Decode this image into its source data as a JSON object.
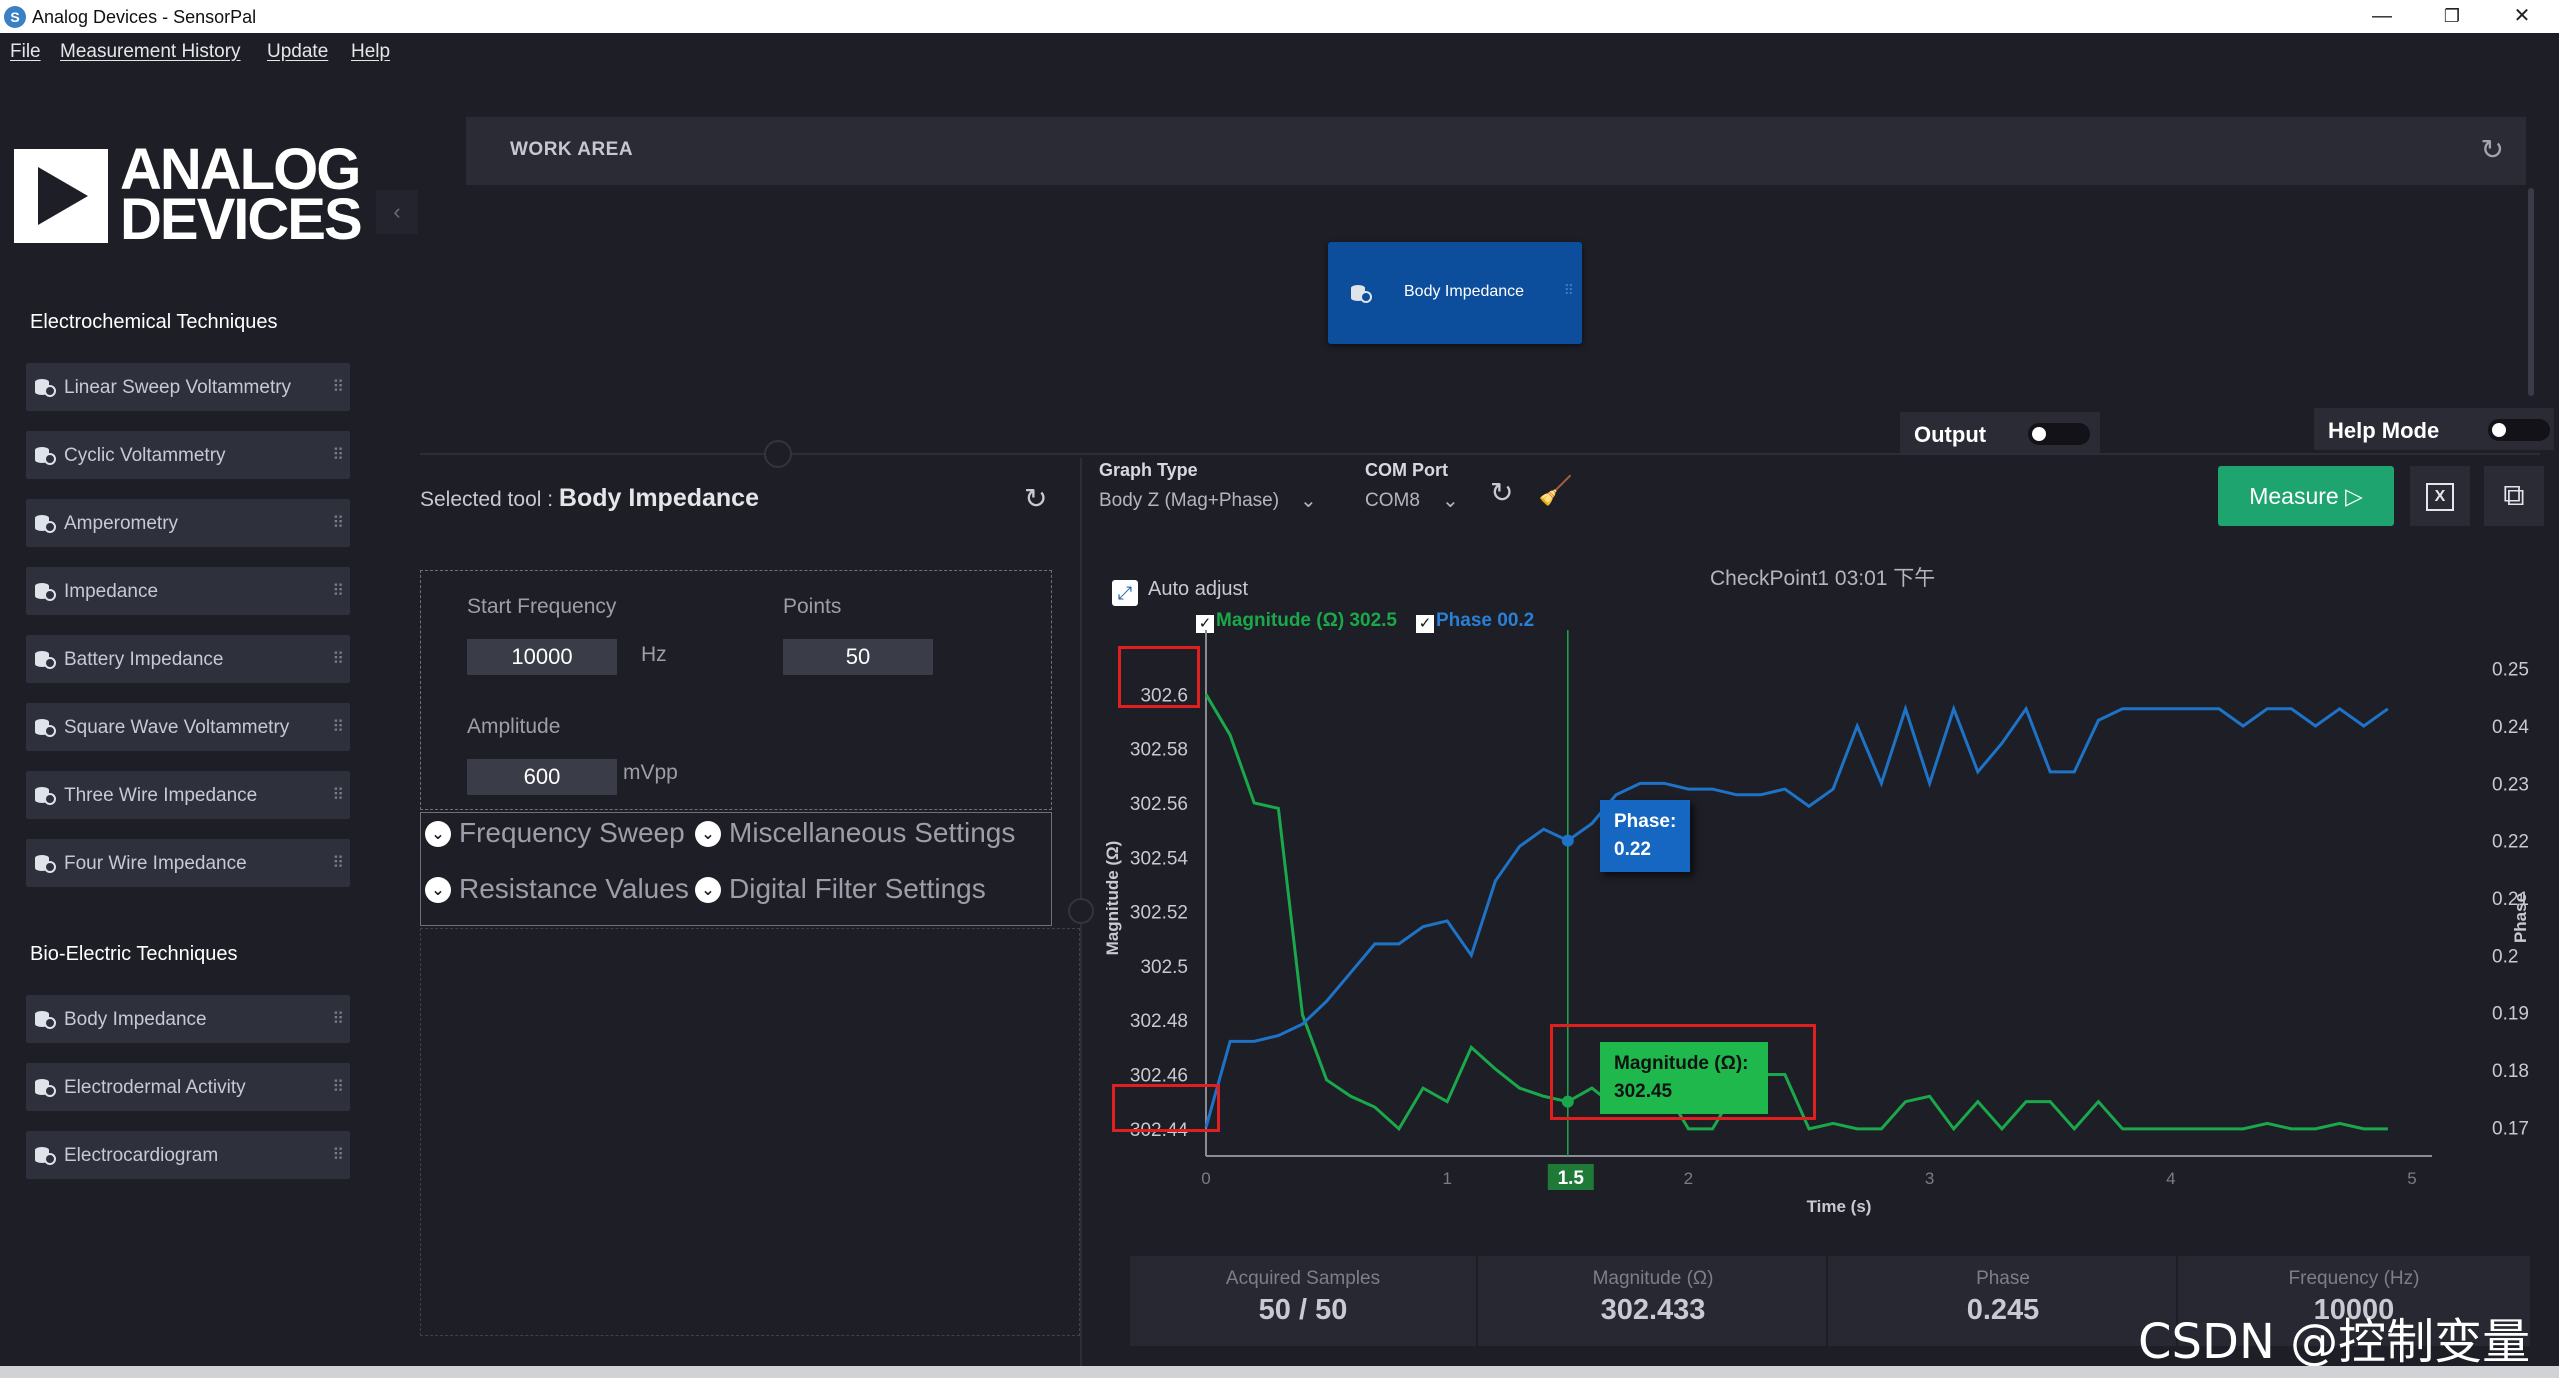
{
  "window": {
    "title": "Analog Devices - SensorPal",
    "minimize": "—",
    "restore": "❐",
    "close": "✕"
  },
  "menu": [
    "File",
    "Measurement History",
    "Update",
    "Help"
  ],
  "logo": {
    "line1": "ANALOG",
    "line2": "DEVICES"
  },
  "sidebar": {
    "electrochemical_heading": "Electrochemical Techniques",
    "electrochemical": [
      "Linear Sweep Voltammetry",
      "Cyclic Voltammetry",
      "Amperometry",
      "Impedance",
      "Battery Impedance",
      "Square Wave Voltammetry",
      "Three Wire Impedance",
      "Four Wire Impedance"
    ],
    "bioelectric_heading": "Bio-Electric Techniques",
    "bioelectric": [
      "Body Impedance",
      "Electrodermal Activity",
      "Electrocardiogram"
    ]
  },
  "workarea": {
    "title": "WORK AREA",
    "block_label": "Body Impedance"
  },
  "toggles": {
    "output": "Output",
    "help_mode": "Help Mode"
  },
  "tool": {
    "selected_prefix": "Selected tool : ",
    "selected_name": "Body Impedance",
    "start_frequency_label": "Start Frequency",
    "start_frequency": "10000",
    "start_frequency_unit": "Hz",
    "points_label": "Points",
    "points": "50",
    "amplitude_label": "Amplitude",
    "amplitude": "600",
    "amplitude_unit": "mVpp",
    "accordions": [
      "Frequency Sweep",
      "Miscellaneous Settings",
      "Resistance Values",
      "Digital Filter Settings"
    ]
  },
  "toolbar": {
    "graph_type_label": "Graph Type",
    "graph_type": "Body Z (Mag+Phase)",
    "com_port_label": "COM Port",
    "com_port": "COM8",
    "measure_label": "Measure"
  },
  "chart": {
    "checkpoint": "CheckPoint1 03:01 下午",
    "auto_adjust": "Auto adjust",
    "legend_magnitude": "Magnitude (Ω) 302.5",
    "legend_phase": "Phase 00.2",
    "tooltip_phase": "Phase:",
    "tooltip_phase_value": "0.22",
    "tooltip_magnitude": "Magnitude (Ω):",
    "tooltip_magnitude_value": "302.45",
    "cursor_x_label": "1.5",
    "colors": {
      "magnitude": "#1aa84a",
      "phase": "#1f73c7"
    }
  },
  "chart_data": {
    "type": "line",
    "title": "CheckPoint1 03:01 下午",
    "xlabel": "Time (s)",
    "ylabel": "Magnitude (Ω)",
    "y2label": "Phase",
    "xlim": [
      0,
      5
    ],
    "ylim": [
      302.43,
      302.62
    ],
    "y2lim": [
      0.165,
      0.255
    ],
    "x_ticks": [
      "0",
      "1",
      "2",
      "3",
      "4",
      "5"
    ],
    "y_ticks": [
      "302.6",
      "302.58",
      "302.56",
      "302.54",
      "302.52",
      "302.5",
      "302.48",
      "302.46",
      "302.44"
    ],
    "y2_ticks": [
      "0.25",
      "0.24",
      "0.23",
      "0.22",
      "0.21",
      "0.2",
      "0.19",
      "0.18",
      "0.17"
    ],
    "grid": false,
    "legend": "top-left",
    "series": [
      {
        "name": "Magnitude (Ω)",
        "axis": "left",
        "x": [
          0,
          0.1,
          0.2,
          0.3,
          0.4,
          0.5,
          0.6,
          0.7,
          0.8,
          0.9,
          1.0,
          1.1,
          1.2,
          1.3,
          1.4,
          1.5,
          1.6,
          1.7,
          1.8,
          1.9,
          2.0,
          2.1,
          2.2,
          2.3,
          2.4,
          2.5,
          2.6,
          2.7,
          2.8,
          2.9,
          3.0,
          3.1,
          3.2,
          3.3,
          3.4,
          3.5,
          3.6,
          3.7,
          3.8,
          3.9,
          4.0,
          4.1,
          4.2,
          4.3,
          4.4,
          4.5,
          4.6,
          4.7,
          4.8,
          4.9
        ],
        "y": [
          302.6,
          302.585,
          302.56,
          302.558,
          302.482,
          302.458,
          302.452,
          302.448,
          302.44,
          302.455,
          302.45,
          302.47,
          302.462,
          302.455,
          302.452,
          302.45,
          302.455,
          302.448,
          302.46,
          302.455,
          302.44,
          302.44,
          302.455,
          302.46,
          302.46,
          302.44,
          302.442,
          302.44,
          302.44,
          302.45,
          302.452,
          302.44,
          302.45,
          302.44,
          302.45,
          302.45,
          302.44,
          302.45,
          302.44,
          302.44,
          302.44,
          302.44,
          302.44,
          302.44,
          302.442,
          302.44,
          302.44,
          302.442,
          302.44,
          302.44
        ]
      },
      {
        "name": "Phase",
        "axis": "right",
        "x": [
          0,
          0.1,
          0.2,
          0.3,
          0.4,
          0.5,
          0.6,
          0.7,
          0.8,
          0.9,
          1.0,
          1.1,
          1.2,
          1.3,
          1.4,
          1.5,
          1.6,
          1.7,
          1.8,
          1.9,
          2.0,
          2.1,
          2.2,
          2.3,
          2.4,
          2.5,
          2.6,
          2.7,
          2.8,
          2.9,
          3.0,
          3.1,
          3.2,
          3.3,
          3.4,
          3.5,
          3.6,
          3.7,
          3.8,
          3.9,
          4.0,
          4.1,
          4.2,
          4.3,
          4.4,
          4.5,
          4.6,
          4.7,
          4.8,
          4.9
        ],
        "y": [
          0.17,
          0.185,
          0.185,
          0.186,
          0.188,
          0.192,
          0.197,
          0.202,
          0.202,
          0.205,
          0.206,
          0.2,
          0.213,
          0.219,
          0.222,
          0.22,
          0.223,
          0.228,
          0.23,
          0.23,
          0.229,
          0.229,
          0.228,
          0.228,
          0.229,
          0.226,
          0.229,
          0.24,
          0.23,
          0.243,
          0.23,
          0.243,
          0.232,
          0.237,
          0.243,
          0.232,
          0.232,
          0.241,
          0.243,
          0.243,
          0.243,
          0.243,
          0.243,
          0.24,
          0.243,
          0.243,
          0.24,
          0.243,
          0.24,
          0.243
        ]
      }
    ]
  },
  "stats": [
    {
      "label": "Acquired Samples",
      "value": "50 / 50"
    },
    {
      "label": "Magnitude (Ω)",
      "value": "302.433"
    },
    {
      "label": "Phase",
      "value": "0.245"
    },
    {
      "label": "Frequency (Hz)",
      "value": "10000"
    }
  ],
  "watermark": "CSDN @控制变量_"
}
